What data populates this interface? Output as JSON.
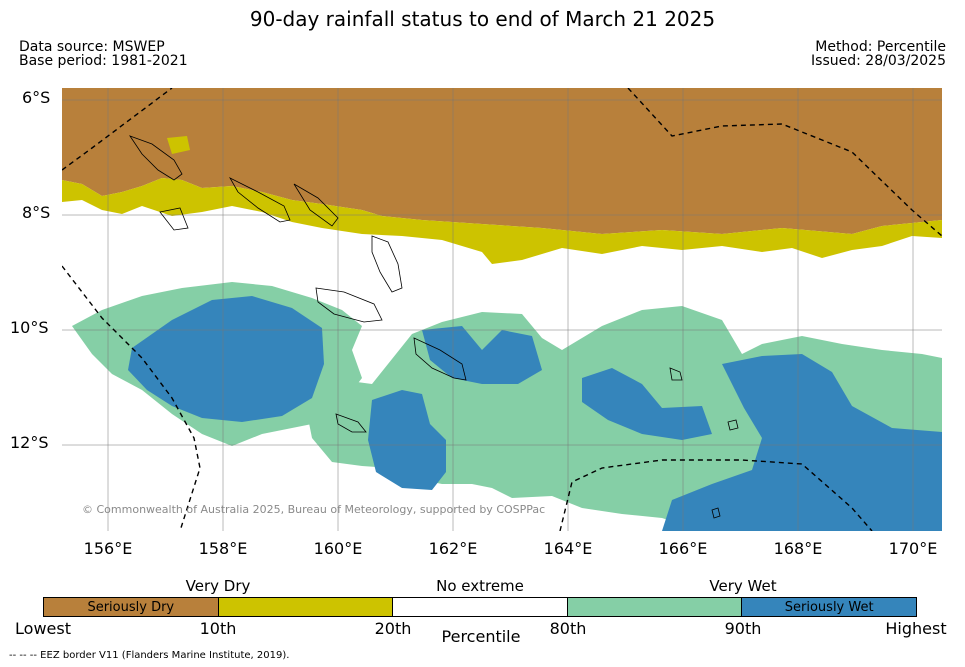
{
  "title": "90-day rainfall status to end of March 21 2025",
  "data_source": "Data source: MSWEP",
  "base_period": "Base period: 1981-2021",
  "method": "Method: Percentile",
  "issued": "Issued: 28/03/2025",
  "lat_labels": [
    "6°S",
    "8°S",
    "10°S",
    "12°S"
  ],
  "lon_labels": [
    "156°E",
    "158°E",
    "160°E",
    "162°E",
    "164°E",
    "166°E",
    "168°E",
    "170°E"
  ],
  "copyright": "© Commonwealth of Australia 2025, Bureau of Meteorology, supported by COSPPac",
  "legend": {
    "categories": [
      "Very Dry",
      "No extreme",
      "Very Wet"
    ],
    "segments": [
      {
        "label": "Seriously Dry",
        "color": "#b8803b"
      },
      {
        "label": "",
        "color": "#cdc300"
      },
      {
        "label": "",
        "color": "#ffffff"
      },
      {
        "label": "",
        "color": "#85cfa6"
      },
      {
        "label": "Seriously Wet",
        "color": "#3585bb"
      }
    ],
    "ticks": [
      "Lowest",
      "10th",
      "20th",
      "80th",
      "90th",
      "Highest"
    ],
    "axis_title": "Percentile"
  },
  "footnote": "--  --  -- EEZ border V11 (Flanders Marine Institute, 2019).",
  "colors": {
    "seriously_dry": "#b8803b",
    "very_dry": "#cdc300",
    "very_wet": "#85cfa6",
    "seriously_wet": "#3585bb"
  }
}
